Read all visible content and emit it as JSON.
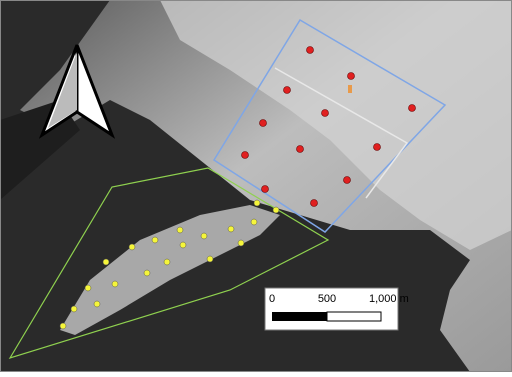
{
  "scale_bar": {
    "labels": [
      "0",
      "500",
      "1,000 m"
    ]
  }
}
